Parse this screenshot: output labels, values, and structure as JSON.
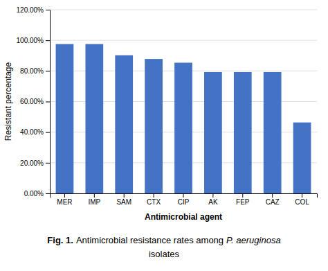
{
  "chart_data": {
    "type": "bar",
    "categories": [
      "MER",
      "IMP",
      "SAM",
      "CTX",
      "CIP",
      "AK",
      "FEP",
      "CAZ",
      "COL"
    ],
    "values": [
      0.9756,
      0.9756,
      0.9024,
      0.878,
      0.8537,
      0.7927,
      0.7927,
      0.7927,
      0.4634
    ],
    "color": "#4472C4",
    "ylabel": "Resistant percentage",
    "xlabel": "Antimicrobial agent",
    "ylim": [
      0,
      1.2
    ],
    "yticks": [
      {
        "value": 0.0,
        "label": "0.00%"
      },
      {
        "value": 0.2,
        "label": "20.00%"
      },
      {
        "value": 0.4,
        "label": "40.00%"
      },
      {
        "value": 0.6,
        "label": "60.00%"
      },
      {
        "value": 0.8,
        "label": "80.00%"
      },
      {
        "value": 1.0,
        "label": "100.00%"
      },
      {
        "value": 1.2,
        "label": "120.00%"
      }
    ],
    "grid": true,
    "annotations": [
      "Fig. 1.",
      "Antimicrobial resistance rates among",
      "P. aeruginosa",
      "isolates"
    ]
  }
}
